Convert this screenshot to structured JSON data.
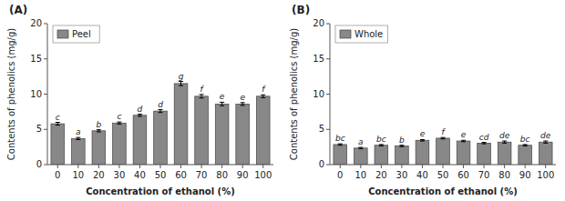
{
  "chart_data": [
    {
      "type": "bar",
      "title": "(A)",
      "categories": [
        0,
        10,
        20,
        30,
        40,
        50,
        60,
        70,
        80,
        90,
        100
      ],
      "series": [
        {
          "name": "Peel",
          "color": "#888888",
          "values": [
            5.8,
            3.7,
            4.8,
            5.9,
            7.0,
            7.6,
            11.5,
            9.7,
            8.6,
            8.6,
            9.7
          ],
          "errors": [
            0.2,
            0.15,
            0.15,
            0.15,
            0.15,
            0.2,
            0.3,
            0.25,
            0.25,
            0.2,
            0.2
          ]
        }
      ],
      "annotations": [
        "c",
        "a",
        "b",
        "c",
        "d",
        "d",
        "g",
        "f",
        "e",
        "e",
        "f"
      ],
      "x_label": "Concentration of ethanol (%)",
      "y_label": "Contents of phenolics (mg/g)",
      "ylim": [
        0,
        20
      ],
      "yticks": [
        0,
        5,
        10,
        15,
        20
      ],
      "grid": false,
      "legend": "upper left"
    },
    {
      "type": "bar",
      "title": "(B)",
      "categories": [
        0,
        10,
        20,
        30,
        40,
        50,
        60,
        70,
        80,
        90,
        100
      ],
      "series": [
        {
          "name": "Whole",
          "color": "#888888",
          "values": [
            2.85,
            2.35,
            2.75,
            2.65,
            3.45,
            3.75,
            3.35,
            3.05,
            3.2,
            2.75,
            3.2
          ],
          "errors": [
            0.1,
            0.1,
            0.1,
            0.1,
            0.1,
            0.1,
            0.1,
            0.1,
            0.15,
            0.1,
            0.15
          ]
        }
      ],
      "annotations": [
        "bc",
        "a",
        "bc",
        "b",
        "e",
        "f",
        "e",
        "cd",
        "de",
        "bc",
        "de"
      ],
      "x_label": "Concentration of ethanol (%)",
      "y_label": "Contents of phenolics (mg/g)",
      "ylim": [
        0,
        20
      ],
      "yticks": [
        0,
        5,
        10,
        15,
        20
      ],
      "grid": false,
      "legend": "upper left"
    }
  ]
}
